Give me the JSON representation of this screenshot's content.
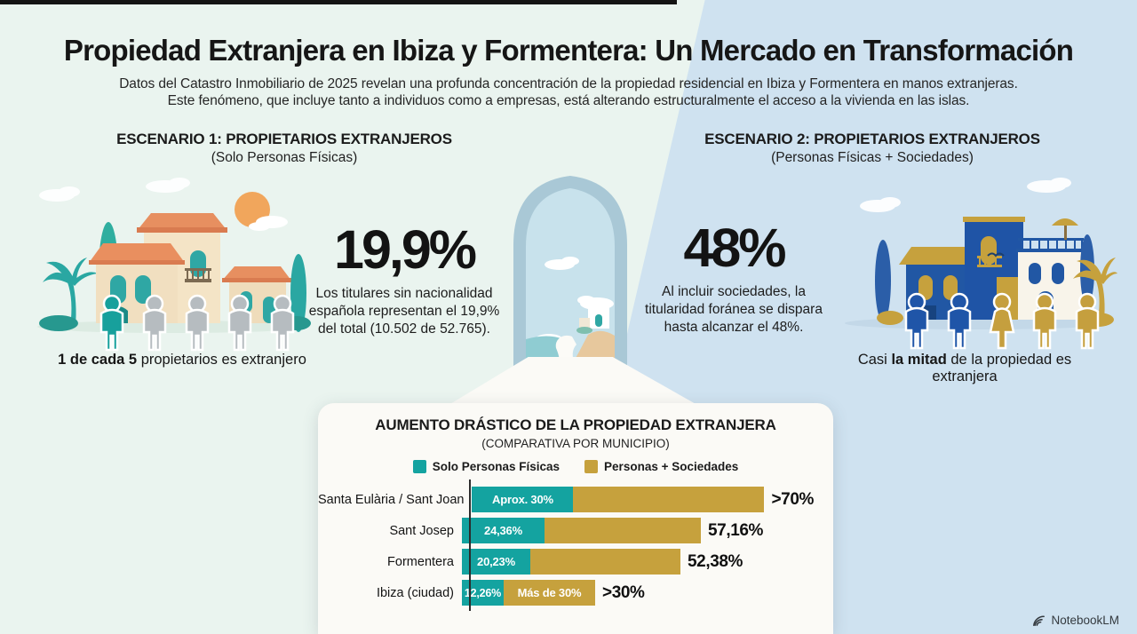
{
  "page": {
    "title": "Propiedad Extranjera en Ibiza y Formentera: Un Mercado en Transformación",
    "subtitle_line1": "Datos del Catastro Inmobiliario de 2025 revelan una profunda concentración de la propiedad residencial en Ibiza y Formentera en manos extranjeras.",
    "subtitle_line2": "Este fenómeno, que incluye tanto a individuos como a empresas, está alterando estructuralmente el acceso a la vivienda en las islas."
  },
  "scenario1": {
    "heading": "ESCENARIO 1: PROPIETARIOS EXTRANJEROS",
    "subheading": "(Solo Personas Físicas)",
    "stat": "19,9%",
    "description": "Los titulares sin nacionalidad española representan el 19,9% del total (10.502 de 52.765).",
    "caption": {
      "prefix": "",
      "bold": "1 de cada 5",
      "rest": " propietarios es extranjero"
    }
  },
  "scenario2": {
    "heading": "ESCENARIO 2: PROPIETARIOS EXTRANJEROS",
    "subheading": "(Personas Físicas + Sociedades)",
    "stat": "48%",
    "description": "Al incluir sociedades, la titularidad foránea se dispara hasta alcanzar el 48%.",
    "caption": {
      "prefix": "Casi ",
      "bold": "la mitad",
      "rest": " de la propiedad es extranjera"
    }
  },
  "chart_data": {
    "type": "bar",
    "orientation": "horizontal-stacked",
    "title": "AUMENTO DRÁSTICO DE LA PROPIEDAD EXTRANJERA",
    "subtitle": "(COMPARATIVA POR MUNICIPIO)",
    "xlim": [
      0,
      75
    ],
    "grid": false,
    "legend_position": "top",
    "legend": [
      {
        "label": "Solo Personas Físicas",
        "color": "#14a3a0"
      },
      {
        "label": "Personas + Sociedades",
        "color": "#c6a13d"
      }
    ],
    "categories": [
      "Santa Eulària / Sant Joan",
      "Sant Josep",
      "Formentera",
      "Ibiza (ciudad)"
    ],
    "rows": [
      {
        "municipio": "Santa Eulària / Sant Joan",
        "fisicas_value": 30,
        "fisicas_label": "Aprox. 30%",
        "total_value": 70,
        "total_label": ">70%",
        "total_label_inside": ""
      },
      {
        "municipio": "Sant Josep",
        "fisicas_value": 24.36,
        "fisicas_label": "24,36%",
        "total_value": 57.16,
        "total_label": "57,16%",
        "total_label_inside": ""
      },
      {
        "municipio": "Formentera",
        "fisicas_value": 20.23,
        "fisicas_label": "20,23%",
        "total_value": 52.38,
        "total_label": "52,38%",
        "total_label_inside": ""
      },
      {
        "municipio": "Ibiza (ciudad)",
        "fisicas_value": 12.26,
        "fisicas_label": "12,26%",
        "total_value": 32,
        "total_label": ">30%",
        "total_label_inside": "Más de 30%"
      }
    ]
  },
  "branding": {
    "label": "NotebookLM",
    "icon": "notebooklm-logo"
  },
  "colors": {
    "bg_left": "#eaf4ef",
    "bg_right": "#cfe2f0",
    "panel": "#fbfaf6",
    "teal": "#14a3a0",
    "gold": "#c6a13d",
    "blue": "#2156a5",
    "gray_figure": "#b6bcc0",
    "roof_orange": "#e78f60",
    "wall_cream": "#f3e3c6",
    "text": "#1b1b1b"
  }
}
